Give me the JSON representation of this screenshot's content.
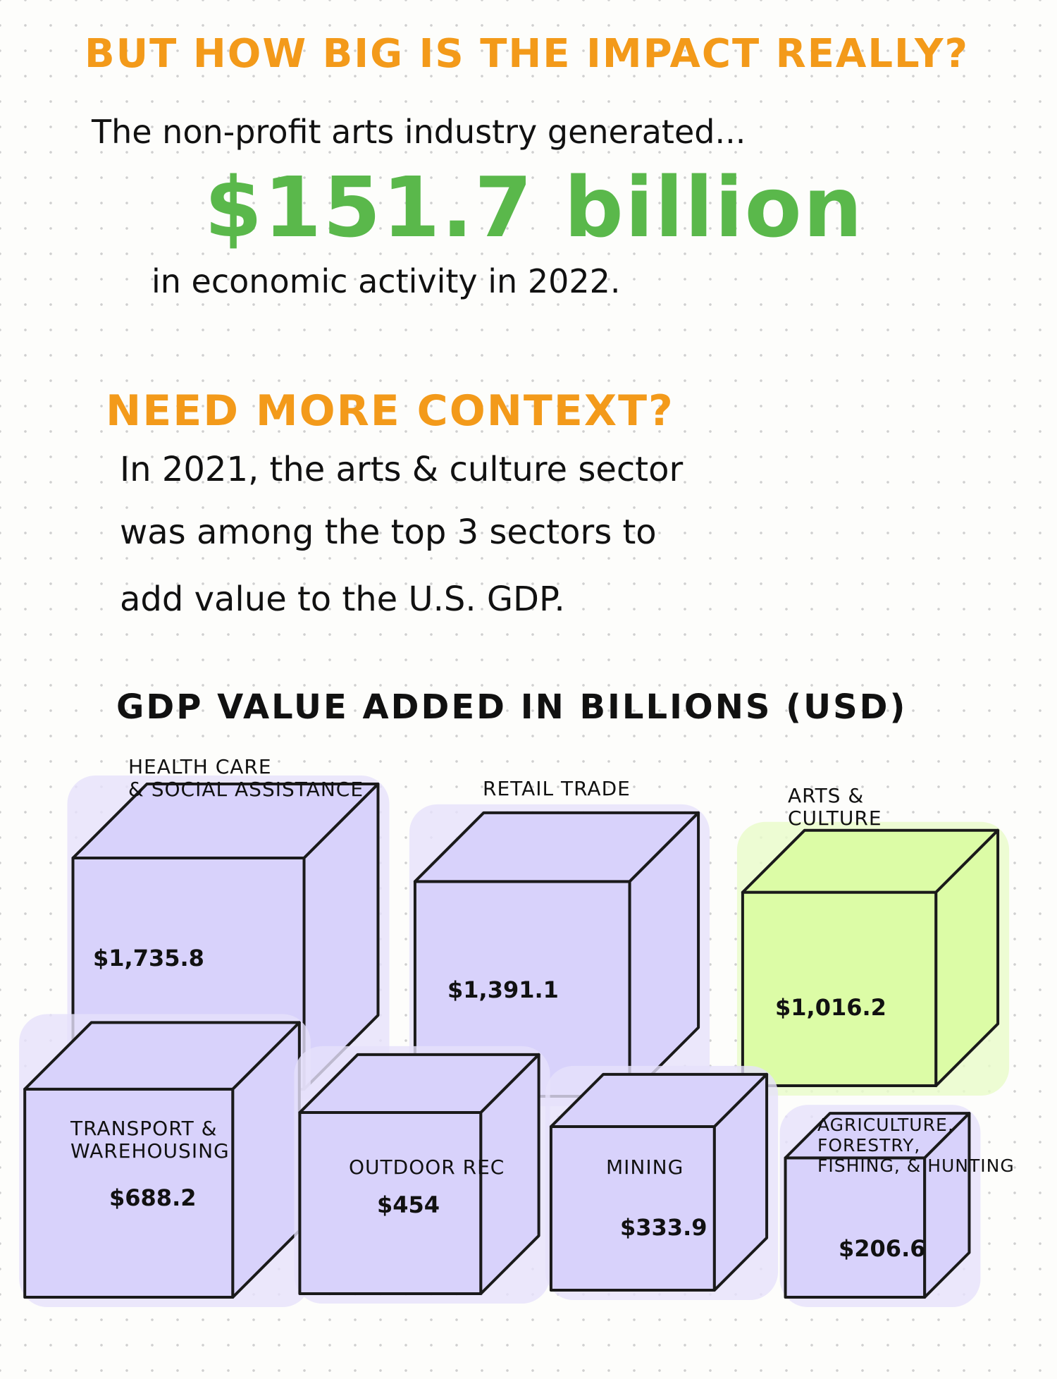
{
  "headline": "BUT HOW BIG IS THE IMPACT REALLY?",
  "intro": "The non-profit arts industry generated...",
  "big_number": "$151.7 billion",
  "outro": "in economic activity in 2022.",
  "context_heading": "NEED MORE CONTEXT?",
  "context_lines": [
    "In 2021, the arts & culture sector",
    "was among the top 3 sectors to",
    "add value to the U.S. GDP."
  ],
  "colors": {
    "accent_orange": "#f39a1a",
    "accent_green": "#5ab84b",
    "cube_purple": "#d8d2fb",
    "cube_highlight": "#dcfca6"
  },
  "chart_data": {
    "type": "bar",
    "title": "GDP VALUE ADDED IN BILLIONS (USD)",
    "mark": "cube",
    "categories": [
      "HEALTH CARE & SOCIAL ASSISTANCE",
      "RETAIL TRADE",
      "ARTS & CULTURE",
      "TRANSPORT & WAREHOUSING",
      "OUTDOOR REC",
      "MINING",
      "AGRICULTURE, FORESTRY, FISHING, & HUNTING"
    ],
    "label_lines": [
      [
        "HEALTH CARE",
        "& SOCIAL ASSISTANCE"
      ],
      [
        "RETAIL TRADE"
      ],
      [
        "ARTS &",
        "CULTURE"
      ],
      [
        "TRANSPORT &",
        "WAREHOUSING"
      ],
      [
        "OUTDOOR REC"
      ],
      [
        "MINING"
      ],
      [
        "AGRICULTURE,",
        "FORESTRY,",
        "FISHING, & HUNTING"
      ]
    ],
    "value_labels": [
      "$1,735.8",
      "$1,391.1",
      "$1,016.2",
      "$688.2",
      "$454",
      "$333.9",
      "$206.6"
    ],
    "values": [
      1735.8,
      1391.1,
      1016.2,
      688.2,
      454,
      333.9,
      206.6
    ],
    "highlight": "ARTS & CULTURE"
  }
}
